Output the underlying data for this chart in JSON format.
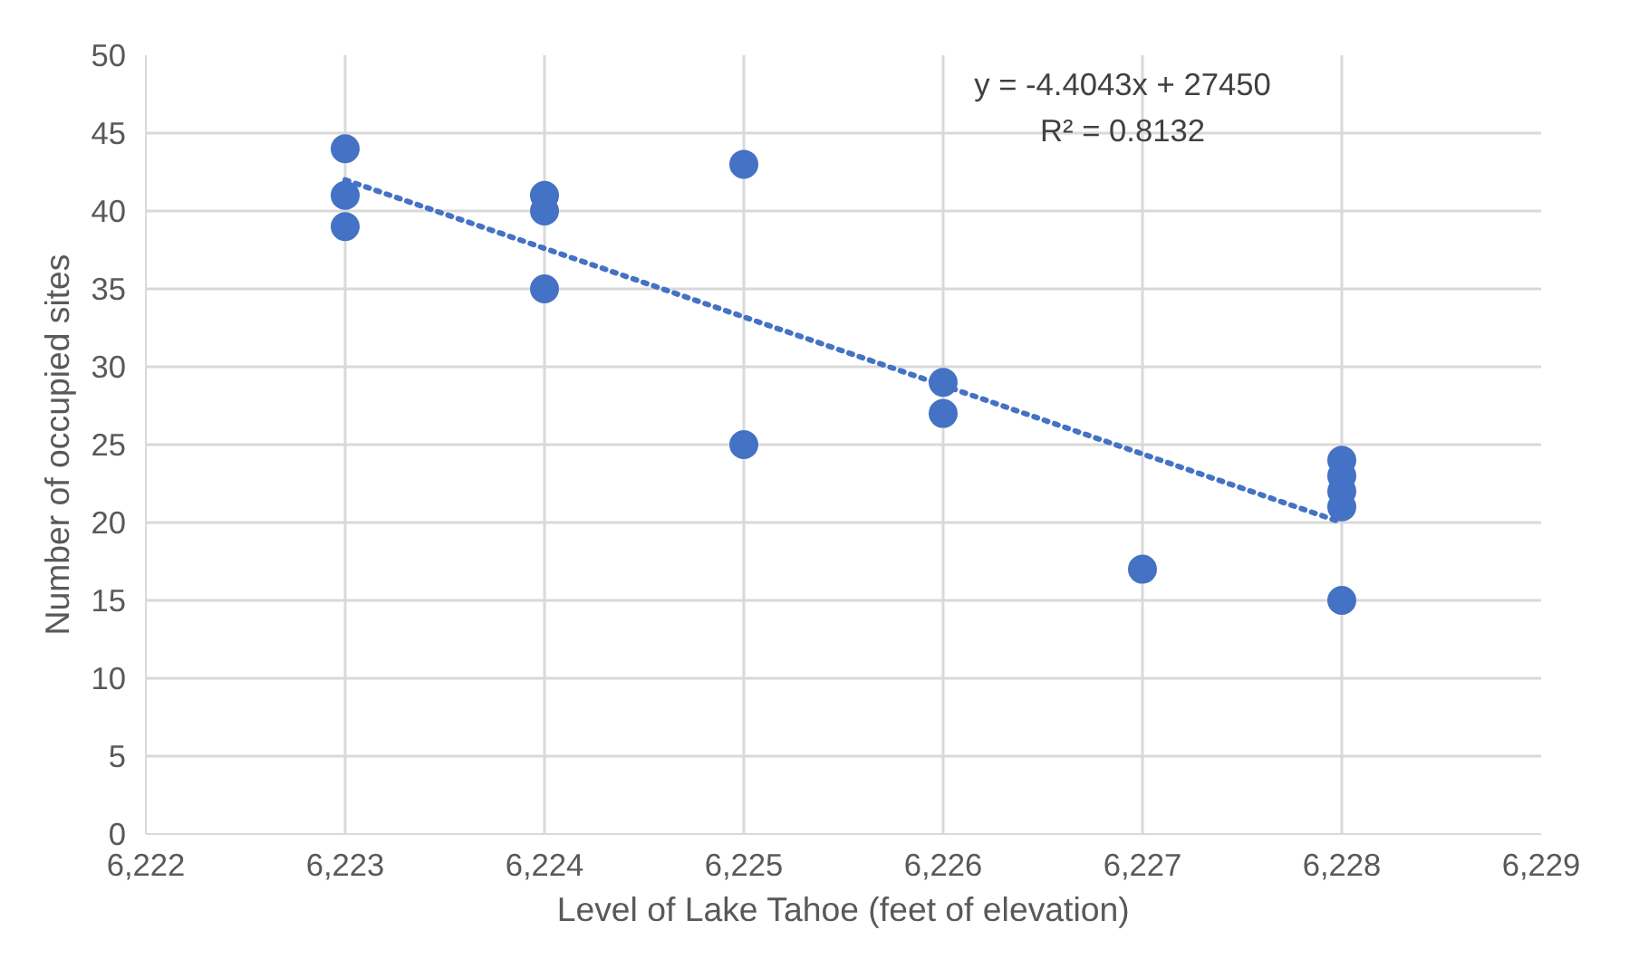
{
  "chart_data": {
    "type": "scatter",
    "xlabel": "Level of Lake Tahoe (feet of elevation)",
    "ylabel": "Number of occupied sites",
    "series": [
      {
        "color": "#4472c4",
        "marker": "circle",
        "x": [
          6223,
          6223,
          6223,
          6224,
          6224,
          6224,
          6225,
          6225,
          6226,
          6226,
          6227,
          6228,
          6228,
          6228,
          6228,
          6228
        ],
        "values": [
          44,
          41,
          39,
          41,
          40,
          35,
          43,
          25,
          29,
          27,
          17,
          24,
          23,
          22,
          21,
          15
        ]
      },
      {
        "type": "line",
        "color": "#4472c4",
        "line_style": "dotted",
        "x": [
          6223,
          6228
        ],
        "values": [
          42.0,
          20.0
        ]
      }
    ],
    "annotations": [
      "y = -4.4043x + 27450",
      "R² = 0.8132"
    ],
    "xlim": [
      6222,
      6229
    ],
    "ylim": [
      0,
      50
    ],
    "xticks": [
      {
        "value": 6222,
        "label": "6,222"
      },
      {
        "value": 6223,
        "label": "6,223"
      },
      {
        "value": 6224,
        "label": "6,224"
      },
      {
        "value": 6225,
        "label": "6,225"
      },
      {
        "value": 6226,
        "label": "6,226"
      },
      {
        "value": 6227,
        "label": "6,227"
      },
      {
        "value": 6228,
        "label": "6,228"
      },
      {
        "value": 6229,
        "label": "6,229"
      }
    ],
    "yticks": [
      0,
      5,
      10,
      15,
      20,
      25,
      30,
      35,
      40,
      45,
      50
    ],
    "grid": true
  }
}
